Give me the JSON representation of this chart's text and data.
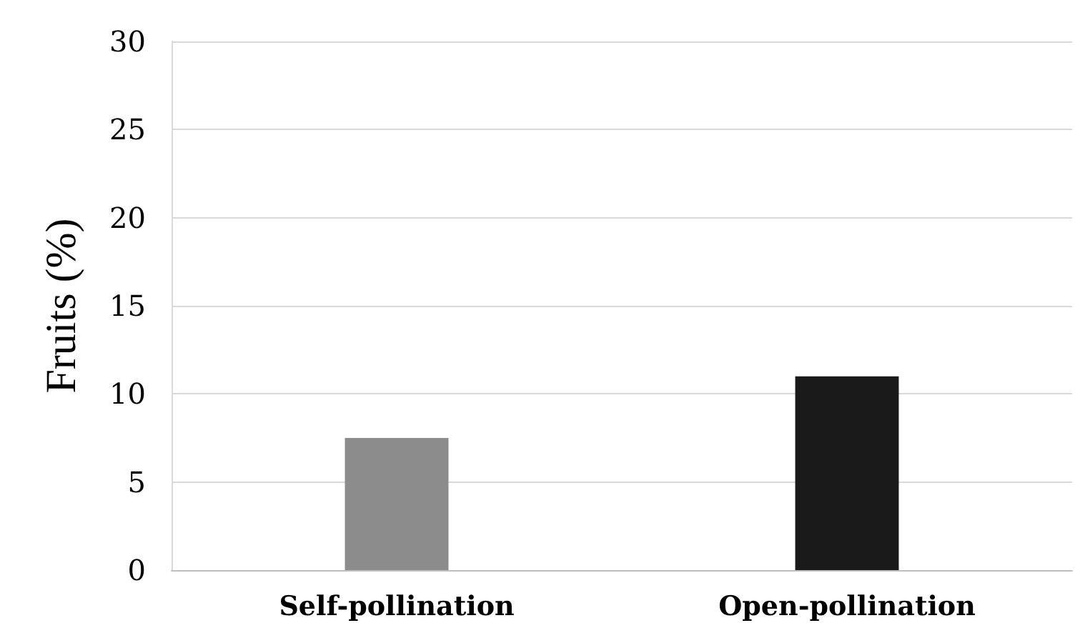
{
  "chart_data": {
    "type": "bar",
    "ylabel": "Fruits (%)",
    "categories": [
      "Self-pollination",
      "Open-pollination"
    ],
    "values": [
      7.5,
      11
    ],
    "colors": [
      "#8c8c8c",
      "#1a1a1a"
    ],
    "ylim": [
      0,
      30
    ],
    "yticks": [
      0,
      5,
      10,
      15,
      20,
      25,
      30
    ],
    "grid": "y"
  }
}
